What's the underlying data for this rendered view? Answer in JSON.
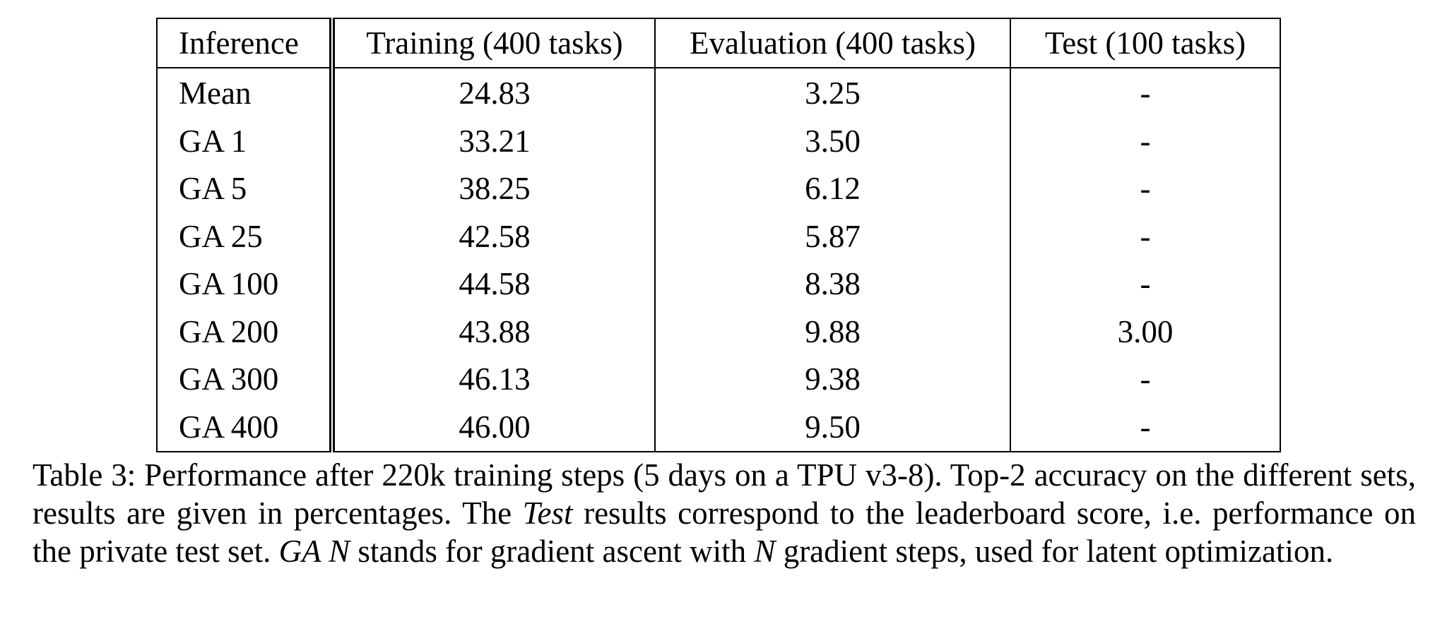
{
  "table": {
    "headers": [
      "Inference",
      "Training (400 tasks)",
      "Evaluation (400 tasks)",
      "Test (100 tasks)"
    ],
    "rows": [
      [
        "Mean",
        "24.83",
        "3.25",
        "-"
      ],
      [
        "GA 1",
        "33.21",
        "3.50",
        "-"
      ],
      [
        "GA 5",
        "38.25",
        "6.12",
        "-"
      ],
      [
        "GA 25",
        "42.58",
        "5.87",
        "-"
      ],
      [
        "GA 100",
        "44.58",
        "8.38",
        "-"
      ],
      [
        "GA 200",
        "43.88",
        "9.88",
        "3.00"
      ],
      [
        "GA 300",
        "46.13",
        "9.38",
        "-"
      ],
      [
        "GA 400",
        "46.00",
        "9.50",
        "-"
      ]
    ]
  },
  "caption": {
    "part1": "Table 3: Performance after 220k training steps (5 days on a TPU v3-8). Top-2 accuracy on the different sets, results are given in percentages. The ",
    "italic1": "Test",
    "part2": " results correspond to the leaderboard score, i.e. performance on the private test set. ",
    "italic2": "GA N",
    "part3": " stands for gradient ascent with ",
    "italic3": "N",
    "part4": " gradient steps, used for latent optimization."
  }
}
